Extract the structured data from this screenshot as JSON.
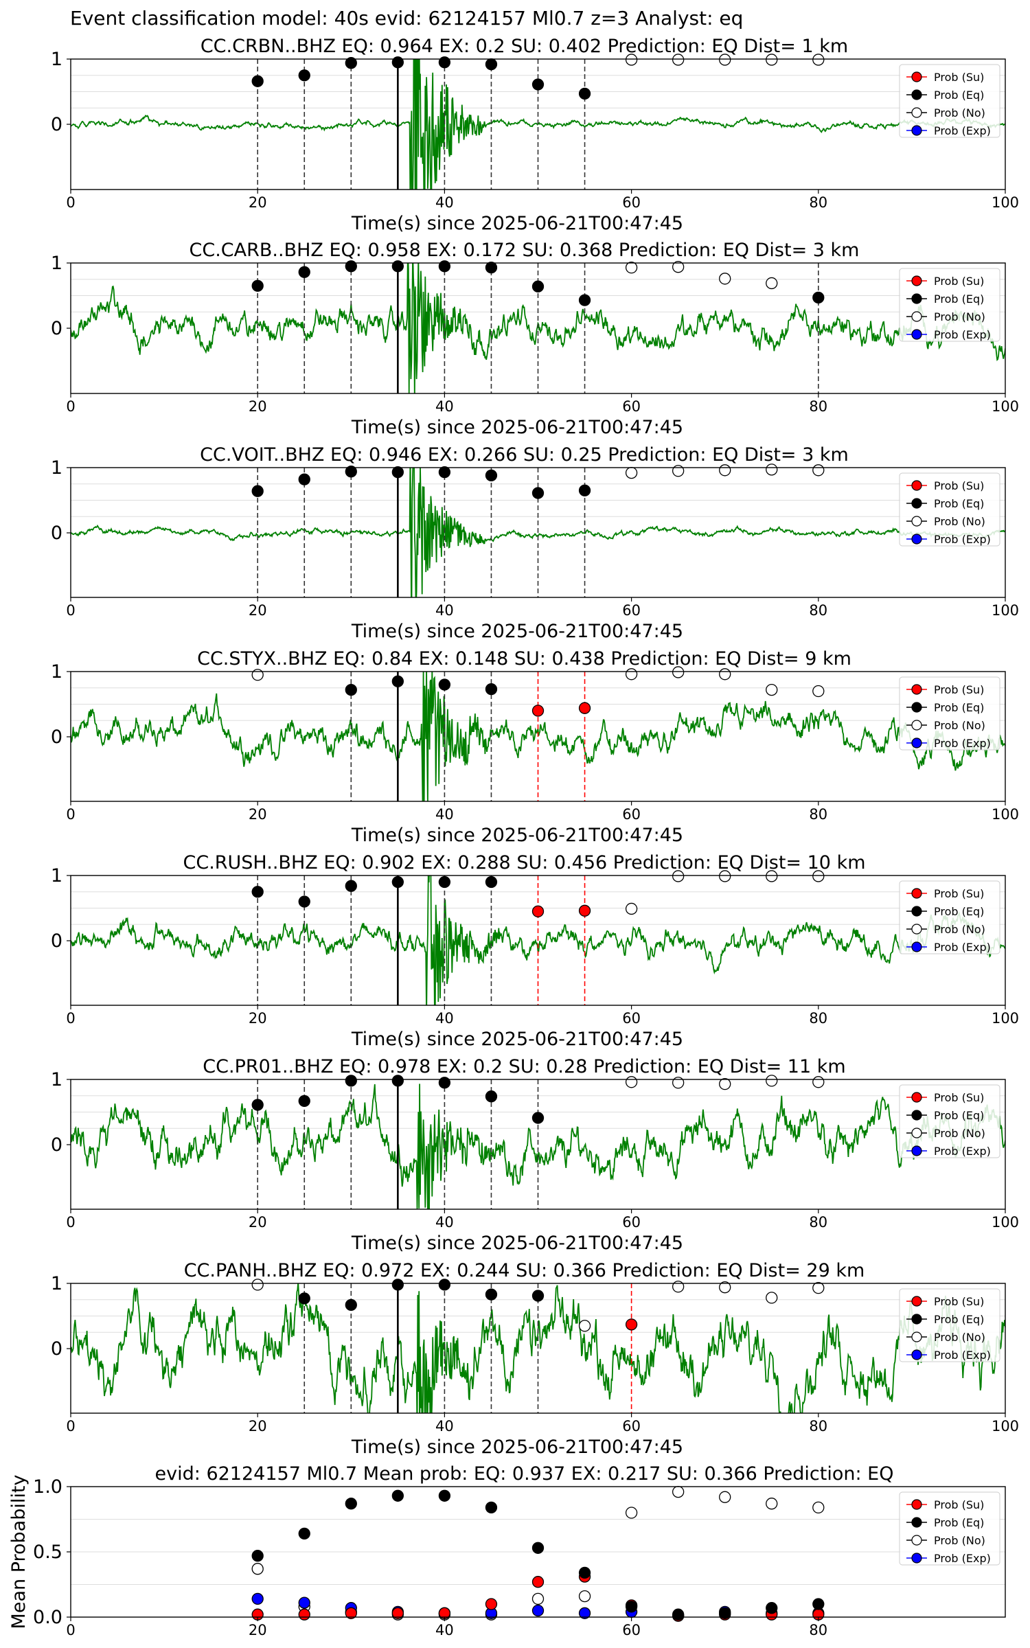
{
  "figure": {
    "suptitle": "Event classification model: 40s evid: 62124157 Ml0.7 z=3 Analyst: eq",
    "xlabel": "Time(s) since 2025-06-21T00:47:45",
    "legend": [
      "Prob (Su)",
      "Prob (Eq)",
      "Prob (No)",
      "Prob (Exp)"
    ],
    "colors": {
      "trace": "#008000",
      "su": "#ff0000",
      "eq": "#000000",
      "no": "#ffffff",
      "exp": "#0000ff",
      "grid": "#dddddd"
    }
  },
  "chart_data": [
    {
      "type": "scatter",
      "title": "CC.CRBN..BHZ   EQ: 0.964  EX: 0.2  SU: 0.402   Prediction: EQ    Dist= 1 km",
      "xlabel": "Time(s) since 2025-06-21T00:47:45",
      "xlim": [
        0,
        100
      ],
      "xticks": [
        0,
        20,
        40,
        60,
        80,
        100
      ],
      "yticks": [
        0,
        1
      ],
      "pick_time": 35,
      "waveform": {
        "noise": 0.05,
        "burst_amp": 1.9,
        "burst_start": 36.3
      },
      "series": [
        {
          "name": "Prob (Eq)",
          "points": [
            [
              20,
              0.66
            ],
            [
              25,
              0.75
            ],
            [
              30,
              0.94
            ],
            [
              35,
              0.95
            ],
            [
              40,
              0.95
            ],
            [
              45,
              0.92
            ],
            [
              50,
              0.61
            ],
            [
              55,
              0.47
            ]
          ]
        },
        {
          "name": "Prob (No)",
          "points": [
            [
              60,
              0.99
            ],
            [
              65,
              0.99
            ],
            [
              70,
              0.99
            ],
            [
              75,
              0.99
            ],
            [
              80,
              0.99
            ]
          ]
        },
        {
          "name": "Prob (Su)",
          "points": []
        },
        {
          "name": "Prob (Exp)",
          "points": []
        }
      ]
    },
    {
      "type": "scatter",
      "title": "CC.CARB..BHZ   EQ: 0.958  EX: 0.172  SU: 0.368   Prediction: EQ    Dist= 3 km",
      "xlabel": "Time(s) since 2025-06-21T00:47:45",
      "xlim": [
        0,
        100
      ],
      "xticks": [
        0,
        20,
        40,
        60,
        80,
        100
      ],
      "yticks": [
        0,
        1
      ],
      "pick_time": 35,
      "waveform": {
        "noise": 0.25,
        "burst_amp": 1.0,
        "burst_start": 36.0
      },
      "series": [
        {
          "name": "Prob (Eq)",
          "points": [
            [
              20,
              0.65
            ],
            [
              25,
              0.86
            ],
            [
              30,
              0.95
            ],
            [
              35,
              0.95
            ],
            [
              40,
              0.95
            ],
            [
              45,
              0.93
            ],
            [
              50,
              0.64
            ],
            [
              55,
              0.43
            ],
            [
              80,
              0.47
            ]
          ]
        },
        {
          "name": "Prob (No)",
          "points": [
            [
              60,
              0.93
            ],
            [
              65,
              0.94
            ],
            [
              70,
              0.76
            ],
            [
              75,
              0.69
            ]
          ]
        },
        {
          "name": "Prob (Su)",
          "points": []
        },
        {
          "name": "Prob (Exp)",
          "points": []
        }
      ]
    },
    {
      "type": "scatter",
      "title": "CC.VOIT..BHZ   EQ: 0.946  EX: 0.266  SU: 0.25   Prediction: EQ    Dist= 3 km",
      "xlabel": "Time(s) since 2025-06-21T00:47:45",
      "xlim": [
        0,
        100
      ],
      "xticks": [
        0,
        20,
        40,
        60,
        80,
        100
      ],
      "yticks": [
        0,
        1
      ],
      "pick_time": 35,
      "waveform": {
        "noise": 0.05,
        "burst_amp": 1.0,
        "burst_start": 36.3
      },
      "series": [
        {
          "name": "Prob (Eq)",
          "points": [
            [
              20,
              0.64
            ],
            [
              25,
              0.82
            ],
            [
              30,
              0.94
            ],
            [
              35,
              0.93
            ],
            [
              40,
              0.93
            ],
            [
              45,
              0.88
            ],
            [
              50,
              0.61
            ],
            [
              55,
              0.65
            ]
          ]
        },
        {
          "name": "Prob (No)",
          "points": [
            [
              60,
              0.92
            ],
            [
              65,
              0.95
            ],
            [
              70,
              0.96
            ],
            [
              75,
              0.97
            ],
            [
              80,
              0.96
            ]
          ]
        },
        {
          "name": "Prob (Su)",
          "points": []
        },
        {
          "name": "Prob (Exp)",
          "points": []
        }
      ]
    },
    {
      "type": "scatter",
      "title": "CC.STYX..BHZ   EQ: 0.84  EX: 0.148  SU: 0.438   Prediction: EQ    Dist= 9 km",
      "xlabel": "Time(s) since 2025-06-21T00:47:45",
      "xlim": [
        0,
        100
      ],
      "xticks": [
        0,
        20,
        40,
        60,
        80,
        100
      ],
      "yticks": [
        0,
        1
      ],
      "pick_time": 35,
      "waveform": {
        "noise": 0.25,
        "burst_amp": 1.0,
        "burst_start": 37.5
      },
      "series": [
        {
          "name": "Prob (Eq)",
          "points": [
            [
              30,
              0.72
            ],
            [
              35,
              0.85
            ],
            [
              40,
              0.8
            ],
            [
              45,
              0.73
            ]
          ]
        },
        {
          "name": "Prob (Su)",
          "points": [
            [
              50,
              0.4
            ],
            [
              55,
              0.44
            ]
          ]
        },
        {
          "name": "Prob (No)",
          "points": [
            [
              20,
              0.95
            ],
            [
              60,
              0.96
            ],
            [
              65,
              0.99
            ],
            [
              70,
              0.96
            ],
            [
              75,
              0.72
            ],
            [
              80,
              0.7
            ]
          ]
        },
        {
          "name": "Prob (Exp)",
          "points": []
        }
      ]
    },
    {
      "type": "scatter",
      "title": "CC.RUSH..BHZ   EQ: 0.902  EX: 0.288  SU: 0.456   Prediction: EQ    Dist= 10 km",
      "xlabel": "Time(s) since 2025-06-21T00:47:45",
      "xlim": [
        0,
        100
      ],
      "xticks": [
        0,
        20,
        40,
        60,
        80,
        100
      ],
      "yticks": [
        0,
        1
      ],
      "pick_time": 35,
      "waveform": {
        "noise": 0.2,
        "burst_amp": 1.0,
        "burst_start": 38.0
      },
      "series": [
        {
          "name": "Prob (Eq)",
          "points": [
            [
              20,
              0.75
            ],
            [
              25,
              0.6
            ],
            [
              30,
              0.84
            ],
            [
              35,
              0.9
            ],
            [
              40,
              0.9
            ],
            [
              45,
              0.9
            ]
          ]
        },
        {
          "name": "Prob (Su)",
          "points": [
            [
              50,
              0.45
            ],
            [
              55,
              0.46
            ]
          ]
        },
        {
          "name": "Prob (No)",
          "points": [
            [
              60,
              0.49
            ],
            [
              65,
              0.99
            ],
            [
              70,
              0.99
            ],
            [
              75,
              0.99
            ],
            [
              80,
              0.99
            ]
          ]
        },
        {
          "name": "Prob (Exp)",
          "points": []
        }
      ]
    },
    {
      "type": "scatter",
      "title": "CC.PR01..BHZ   EQ: 0.978  EX: 0.2  SU: 0.28   Prediction: EQ    Dist= 11 km",
      "xlabel": "Time(s) since 2025-06-21T00:47:45",
      "xlim": [
        0,
        100
      ],
      "xticks": [
        0,
        20,
        40,
        60,
        80,
        100
      ],
      "yticks": [
        0,
        1
      ],
      "pick_time": 35,
      "waveform": {
        "noise": 0.35,
        "burst_amp": 0.9,
        "burst_start": 37.0
      },
      "series": [
        {
          "name": "Prob (Eq)",
          "points": [
            [
              20,
              0.61
            ],
            [
              25,
              0.67
            ],
            [
              30,
              0.98
            ],
            [
              35,
              0.98
            ],
            [
              40,
              0.95
            ],
            [
              45,
              0.74
            ],
            [
              50,
              0.41
            ]
          ]
        },
        {
          "name": "Prob (No)",
          "points": [
            [
              60,
              0.96
            ],
            [
              65,
              0.95
            ],
            [
              70,
              0.93
            ],
            [
              75,
              0.98
            ],
            [
              80,
              0.96
            ]
          ]
        },
        {
          "name": "Prob (Su)",
          "points": []
        },
        {
          "name": "Prob (Exp)",
          "points": []
        }
      ]
    },
    {
      "type": "scatter",
      "title": "CC.PANH..BHZ   EQ: 0.972  EX: 0.244  SU: 0.366   Prediction: EQ    Dist= 29 km",
      "xlabel": "Time(s) since 2025-06-21T00:47:45",
      "xlim": [
        0,
        100
      ],
      "xticks": [
        0,
        20,
        40,
        60,
        80,
        100
      ],
      "yticks": [
        0,
        1
      ],
      "pick_time": 35,
      "waveform": {
        "noise": 0.5,
        "burst_amp": 0.8,
        "burst_start": 37.0
      },
      "series": [
        {
          "name": "Prob (Eq)",
          "points": [
            [
              25,
              0.77
            ],
            [
              30,
              0.67
            ],
            [
              35,
              0.98
            ],
            [
              40,
              0.98
            ],
            [
              45,
              0.83
            ],
            [
              50,
              0.81
            ]
          ]
        },
        {
          "name": "Prob (Su)",
          "points": [
            [
              60,
              0.37
            ]
          ]
        },
        {
          "name": "Prob (No)",
          "points": [
            [
              20,
              0.98
            ],
            [
              55,
              0.35
            ],
            [
              65,
              0.95
            ],
            [
              70,
              0.94
            ],
            [
              75,
              0.78
            ],
            [
              80,
              0.93
            ]
          ]
        },
        {
          "name": "Prob (Exp)",
          "points": []
        }
      ]
    },
    {
      "type": "scatter",
      "title": "evid: 62124157  Ml0.7   Mean prob:   EQ: 0.937  EX: 0.217  SU: 0.366   Prediction: EQ",
      "ylabel": "Mean Probability",
      "xlim": [
        0,
        100
      ],
      "xticks": [
        0,
        20,
        40,
        60,
        80
      ],
      "ylim": [
        0,
        1
      ],
      "yticks": [
        0.0,
        0.5,
        1.0
      ],
      "series": [
        {
          "name": "Prob (Eq)",
          "points": [
            [
              20,
              0.47
            ],
            [
              25,
              0.64
            ],
            [
              30,
              0.87
            ],
            [
              35,
              0.93
            ],
            [
              40,
              0.93
            ],
            [
              45,
              0.84
            ],
            [
              50,
              0.53
            ],
            [
              55,
              0.34
            ],
            [
              60,
              0.08
            ],
            [
              65,
              0.02
            ],
            [
              70,
              0.03
            ],
            [
              75,
              0.07
            ],
            [
              80,
              0.1
            ]
          ]
        },
        {
          "name": "Prob (No)",
          "points": [
            [
              20,
              0.37
            ],
            [
              25,
              0.08
            ],
            [
              30,
              0.04
            ],
            [
              35,
              0.02
            ],
            [
              40,
              0.02
            ],
            [
              45,
              0.02
            ],
            [
              50,
              0.14
            ],
            [
              55,
              0.16
            ],
            [
              60,
              0.8
            ],
            [
              65,
              0.96
            ],
            [
              70,
              0.92
            ],
            [
              75,
              0.87
            ],
            [
              80,
              0.84
            ]
          ]
        },
        {
          "name": "Prob (Exp)",
          "points": [
            [
              20,
              0.14
            ],
            [
              25,
              0.11
            ],
            [
              30,
              0.07
            ],
            [
              35,
              0.04
            ],
            [
              40,
              0.03
            ],
            [
              45,
              0.03
            ],
            [
              50,
              0.05
            ],
            [
              55,
              0.03
            ],
            [
              60,
              0.04
            ],
            [
              65,
              0.01
            ],
            [
              70,
              0.04
            ],
            [
              75,
              0.03
            ],
            [
              80,
              0.03
            ]
          ]
        },
        {
          "name": "Prob (Su)",
          "points": [
            [
              20,
              0.02
            ],
            [
              25,
              0.02
            ],
            [
              30,
              0.03
            ],
            [
              35,
              0.03
            ],
            [
              40,
              0.03
            ],
            [
              45,
              0.1
            ],
            [
              50,
              0.27
            ],
            [
              55,
              0.31
            ],
            [
              60,
              0.09
            ],
            [
              65,
              0.01
            ],
            [
              70,
              0.02
            ],
            [
              75,
              0.02
            ],
            [
              80,
              0.02
            ]
          ]
        }
      ]
    }
  ]
}
